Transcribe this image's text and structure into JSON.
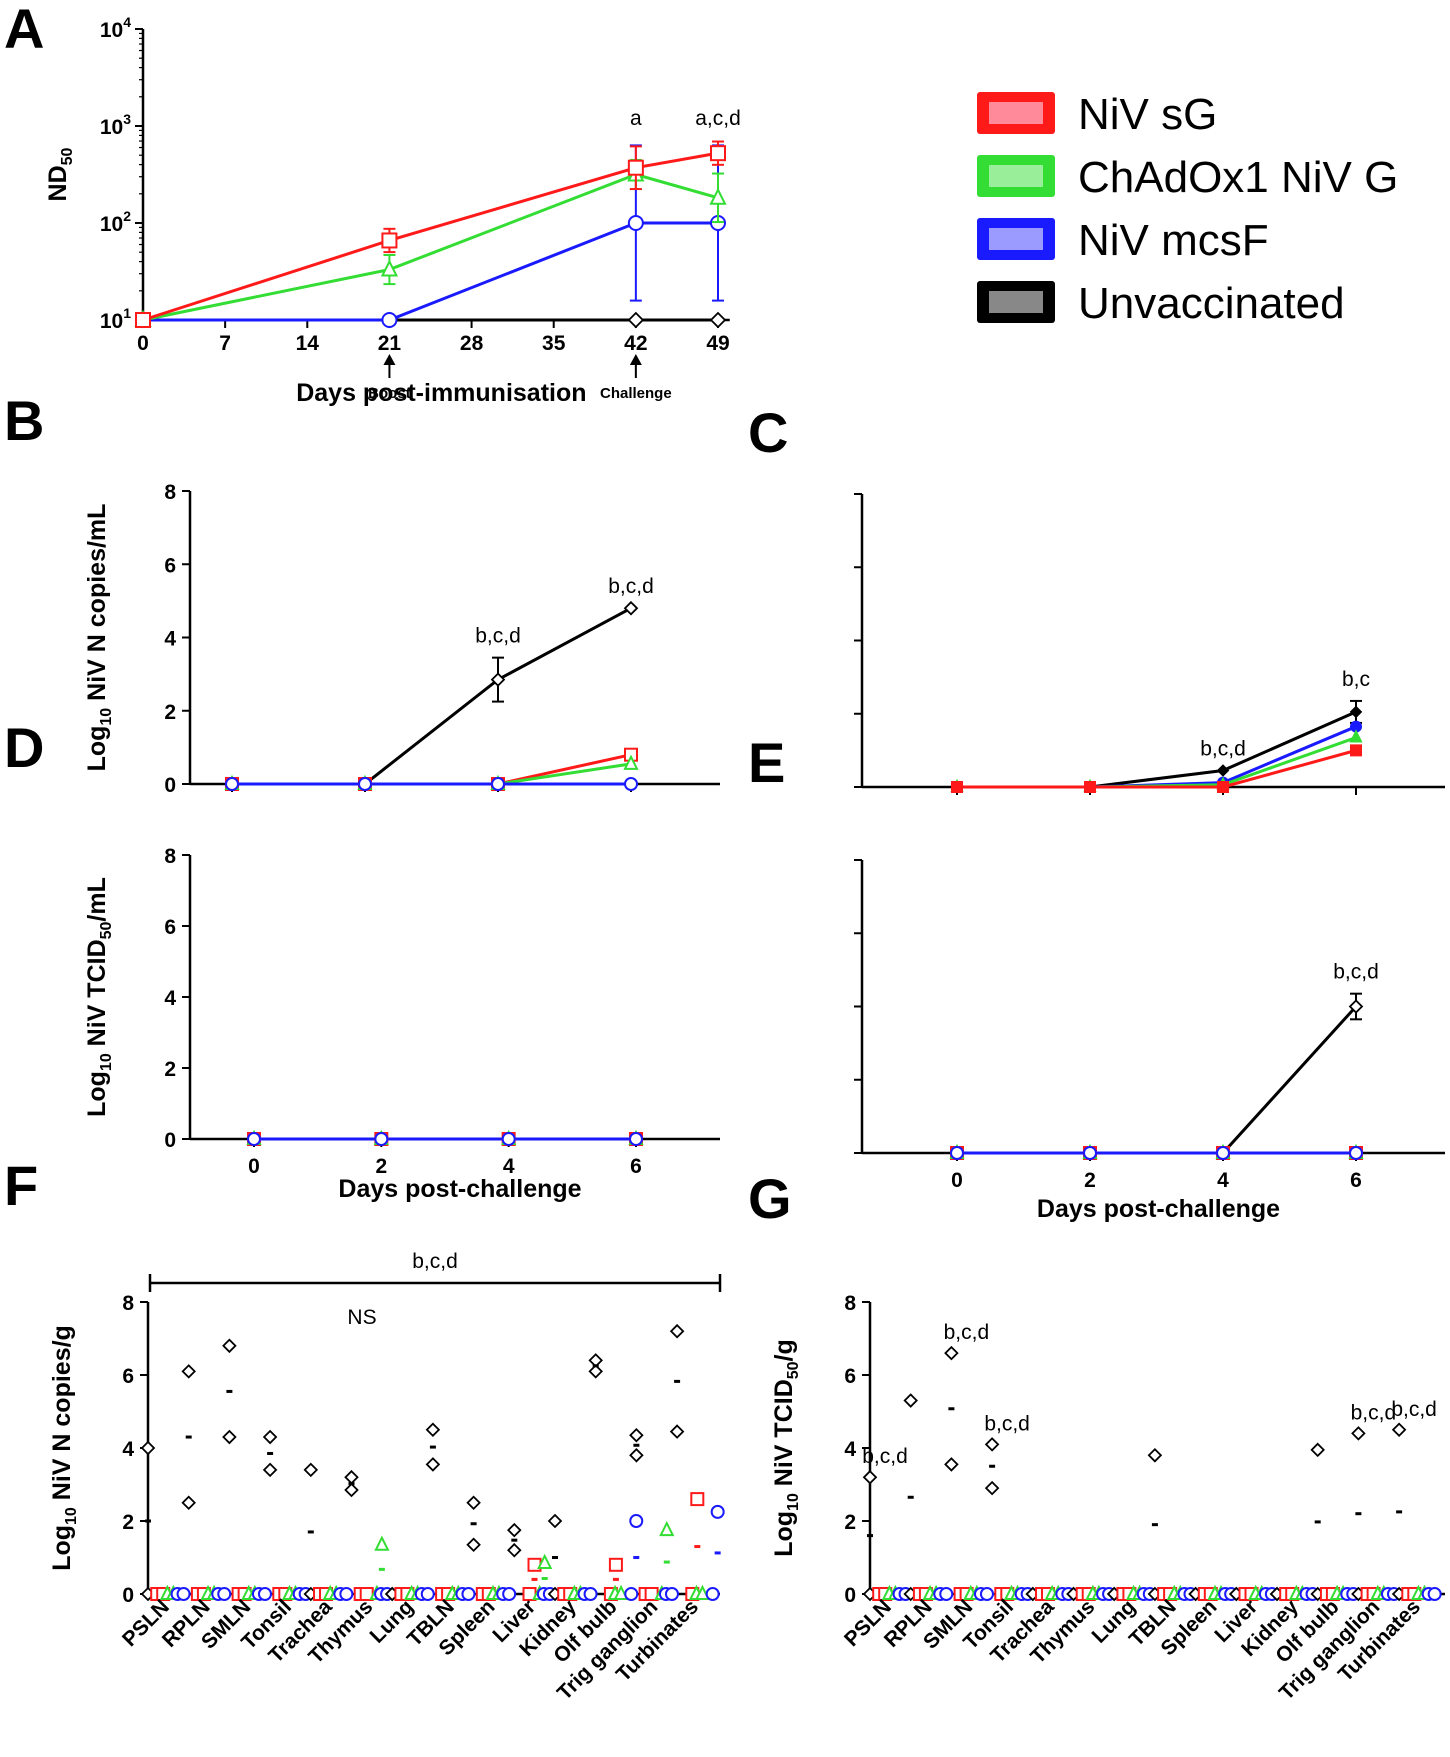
{
  "colors": {
    "sG": "#ff1a1a",
    "chad": "#33dd33",
    "mcsF": "#1a1aff",
    "unvac": "#000000"
  },
  "legend": [
    {
      "key": "sG",
      "label": "NiV sG",
      "fill": "#ff8a9a"
    },
    {
      "key": "chad",
      "label": "ChAdOx1 NiV G",
      "fill": "#99ee99"
    },
    {
      "key": "mcsF",
      "label": "NiV mcsF",
      "fill": "#9a9aff"
    },
    {
      "key": "unvac",
      "label": "Unvaccinated",
      "fill": "#888888"
    }
  ],
  "chart_data": [
    {
      "panel": "A",
      "type": "line",
      "ylabel": "ND50",
      "xlabel": "Days post-immunisation",
      "xlim": [
        0,
        50
      ],
      "xticks": [
        0,
        7,
        14,
        21,
        28,
        35,
        42,
        49
      ],
      "ylim_log10": [
        1,
        4
      ],
      "y_tick_labels": [
        "10^1",
        "10^2",
        "10^3",
        "10^4"
      ],
      "markers": [
        {
          "day": 21,
          "label": "Boost"
        },
        {
          "day": 42,
          "label": "Challenge"
        }
      ],
      "series": [
        {
          "group": "sG",
          "x": [
            0,
            21,
            42,
            49
          ],
          "log10_y": [
            1,
            1.82,
            2.57,
            2.72
          ],
          "err": [
            0,
            0.12,
            0.22,
            0.12
          ]
        },
        {
          "group": "chad",
          "x": [
            0,
            21,
            42,
            49
          ],
          "log10_y": [
            1,
            1.52,
            2.5,
            2.26
          ],
          "err": [
            0,
            0.15,
            0.15,
            0.25
          ]
        },
        {
          "group": "mcsF",
          "x": [
            0,
            21,
            42,
            49
          ],
          "log10_y": [
            1,
            1,
            2,
            2
          ],
          "err": [
            0,
            0,
            0.8,
            0.8
          ]
        },
        {
          "group": "unvac",
          "x": [
            0,
            21,
            42,
            49
          ],
          "log10_y": [
            1,
            1,
            1,
            1
          ],
          "err": [
            0,
            0,
            0,
            0
          ]
        }
      ],
      "annotations": [
        {
          "x": 42,
          "text": "a"
        },
        {
          "x": 49,
          "text": "a,c,d"
        }
      ]
    },
    {
      "panel": "B",
      "type": "line",
      "ylabel": "Log10 NiV N copies/mL",
      "xticks": [
        0,
        2,
        4,
        6
      ],
      "ylim": [
        0,
        8
      ],
      "series": [
        {
          "group": "unvac",
          "x": [
            0,
            2,
            4,
            6
          ],
          "y": [
            0,
            0,
            2.85,
            4.8
          ],
          "err": [
            0,
            0,
            0.6,
            0
          ]
        },
        {
          "group": "sG",
          "x": [
            0,
            2,
            4,
            6
          ],
          "y": [
            0,
            0,
            0,
            0.8
          ],
          "err": [
            0,
            0,
            0,
            0
          ]
        },
        {
          "group": "chad",
          "x": [
            0,
            2,
            4,
            6
          ],
          "y": [
            0,
            0,
            0,
            0.55
          ],
          "err": [
            0,
            0,
            0,
            0
          ]
        },
        {
          "group": "mcsF",
          "x": [
            0,
            2,
            4,
            6
          ],
          "y": [
            0,
            0,
            0,
            0
          ],
          "err": [
            0,
            0,
            0,
            0
          ]
        }
      ],
      "annotations": [
        {
          "x": 4,
          "text": "b,c,d"
        },
        {
          "x": 6,
          "text": "b,c,d"
        }
      ]
    },
    {
      "panel": "C",
      "type": "line",
      "xticks": [
        0,
        2,
        4,
        6
      ],
      "ylim": [
        0,
        8
      ],
      "series": [
        {
          "group": "unvac",
          "x": [
            0,
            2,
            4,
            6
          ],
          "y": [
            0,
            0,
            0.45,
            2.05
          ],
          "err": [
            0,
            0,
            0,
            0.3
          ]
        },
        {
          "group": "mcsF",
          "x": [
            0,
            2,
            4,
            6
          ],
          "y": [
            0,
            0,
            0.12,
            1.65
          ],
          "err": [
            0,
            0,
            0,
            0
          ]
        },
        {
          "group": "chad",
          "x": [
            0,
            2,
            4,
            6
          ],
          "y": [
            0,
            0,
            0.06,
            1.35
          ],
          "err": [
            0,
            0,
            0,
            0
          ]
        },
        {
          "group": "sG",
          "x": [
            0,
            2,
            4,
            6
          ],
          "y": [
            0,
            0,
            0,
            1.0
          ],
          "err": [
            0,
            0,
            0,
            0
          ]
        }
      ],
      "annotations": [
        {
          "x": 4,
          "text": "b,c,d"
        },
        {
          "x": 6,
          "text": "b,c"
        }
      ]
    },
    {
      "panel": "D",
      "type": "line",
      "ylabel": "Log10 NiV TCID50/mL",
      "xlabel": "Days post-challenge",
      "xticks": [
        0,
        2,
        4,
        6
      ],
      "ylim": [
        0,
        8
      ],
      "series": [
        {
          "group": "sG",
          "x": [
            0,
            2,
            4,
            6
          ],
          "y": [
            0,
            0,
            0,
            0
          ]
        },
        {
          "group": "chad",
          "x": [
            0,
            2,
            4,
            6
          ],
          "y": [
            0,
            0,
            0,
            0
          ]
        },
        {
          "group": "mcsF",
          "x": [
            0,
            2,
            4,
            6
          ],
          "y": [
            0,
            0,
            0,
            0
          ]
        },
        {
          "group": "unvac",
          "x": [
            0,
            2,
            4,
            6
          ],
          "y": [
            0,
            0,
            0,
            0
          ]
        }
      ]
    },
    {
      "panel": "E",
      "type": "line",
      "xlabel": "Days post-challenge",
      "xticks": [
        0,
        2,
        4,
        6
      ],
      "ylim": [
        0,
        8
      ],
      "series": [
        {
          "group": "unvac",
          "x": [
            0,
            2,
            4,
            6
          ],
          "y": [
            0,
            0,
            0,
            4.0
          ],
          "err": [
            0,
            0,
            0,
            0.35
          ]
        },
        {
          "group": "mcsF",
          "x": [
            0,
            2,
            4,
            6
          ],
          "y": [
            0,
            0,
            0,
            0
          ]
        },
        {
          "group": "sG",
          "x": [
            0,
            2,
            4,
            6
          ],
          "y": [
            0,
            0,
            0,
            0
          ]
        },
        {
          "group": "chad",
          "x": [
            0,
            2,
            4,
            6
          ],
          "y": [
            0,
            0,
            0,
            0
          ]
        }
      ],
      "annotations": [
        {
          "x": 6,
          "text": "b,c,d"
        }
      ]
    },
    {
      "panel": "F",
      "type": "scatter",
      "ylabel": "Log10 NiV N copies/g",
      "ylim": [
        0,
        8
      ],
      "categories": [
        "PSLN",
        "RPLN",
        "SMLN",
        "Tonsil",
        "Trachea",
        "Thymus",
        "Lung",
        "TBLN",
        "Spleen",
        "Liver",
        "Kidney",
        "Olf bulb",
        "Trig ganglion",
        "Turbinates"
      ],
      "bracket_label": "b,c,d",
      "ns_label": "NS",
      "points": {
        "unvac": [
          [
            4.0,
            0
          ],
          [
            6.1,
            2.5
          ],
          [
            6.8,
            4.3
          ],
          [
            4.3,
            3.4
          ],
          [
            3.4,
            0
          ],
          [
            3.2,
            2.85
          ],
          [
            0,
            0
          ],
          [
            4.5,
            3.55
          ],
          [
            2.5,
            1.35
          ],
          [
            1.75,
            1.2
          ],
          [
            2.0,
            0
          ],
          [
            6.4,
            6.1
          ],
          [
            4.35,
            3.8
          ],
          [
            7.2,
            4.45
          ]
        ],
        "sG": [
          [
            0,
            0
          ],
          [
            0,
            0
          ],
          [
            0,
            0
          ],
          [
            0,
            0
          ],
          [
            0,
            0
          ],
          [
            0,
            0
          ],
          [
            0,
            0
          ],
          [
            0,
            0
          ],
          [
            0,
            0
          ],
          [
            0.8,
            0
          ],
          [
            0,
            0
          ],
          [
            0.8,
            0
          ],
          [
            0,
            0
          ],
          [
            2.6,
            0
          ]
        ],
        "chad": [
          [
            0,
            0
          ],
          [
            0,
            0
          ],
          [
            0,
            0
          ],
          [
            0,
            0
          ],
          [
            0,
            0
          ],
          [
            1.35,
            0
          ],
          [
            0,
            0
          ],
          [
            0,
            0
          ],
          [
            0,
            0
          ],
          [
            0.85,
            0
          ],
          [
            0,
            0
          ],
          [
            0,
            0
          ],
          [
            1.75,
            0
          ],
          [
            0,
            0
          ]
        ],
        "mcsF": [
          [
            0,
            0
          ],
          [
            0,
            0
          ],
          [
            0,
            0
          ],
          [
            0,
            0
          ],
          [
            0,
            0
          ],
          [
            0,
            0
          ],
          [
            0,
            0
          ],
          [
            0,
            0
          ],
          [
            0,
            0
          ],
          [
            0,
            0
          ],
          [
            0,
            0
          ],
          [
            2.0,
            0
          ],
          [
            0,
            0
          ],
          [
            2.25,
            0
          ]
        ]
      }
    },
    {
      "panel": "G",
      "type": "scatter",
      "ylabel": "Log10 NiV TCID50/g",
      "ylim": [
        0,
        8
      ],
      "categories": [
        "PSLN",
        "RPLN",
        "SMLN",
        "Tonsil",
        "Trachea",
        "Thymus",
        "Lung",
        "TBLN",
        "Spleen",
        "Liver",
        "Kidney",
        "Olf bulb",
        "Trig ganglion",
        "Turbinates"
      ],
      "points": {
        "unvac": [
          [
            3.2,
            0
          ],
          [
            5.3,
            0
          ],
          [
            6.6,
            3.55
          ],
          [
            4.1,
            2.9
          ],
          [
            0,
            0
          ],
          [
            0,
            0
          ],
          [
            0,
            0
          ],
          [
            3.8,
            0
          ],
          [
            0,
            0
          ],
          [
            0,
            0
          ],
          [
            0,
            0
          ],
          [
            3.95,
            0
          ],
          [
            4.4,
            0
          ],
          [
            4.5,
            0
          ]
        ],
        "sG": [
          [
            0,
            0
          ],
          [
            0,
            0
          ],
          [
            0,
            0
          ],
          [
            0,
            0
          ],
          [
            0,
            0
          ],
          [
            0,
            0
          ],
          [
            0,
            0
          ],
          [
            0,
            0
          ],
          [
            0,
            0
          ],
          [
            0,
            0
          ],
          [
            0,
            0
          ],
          [
            0,
            0
          ],
          [
            0,
            0
          ],
          [
            0,
            0
          ]
        ],
        "chad": [
          [
            0,
            0
          ],
          [
            0,
            0
          ],
          [
            0,
            0
          ],
          [
            0,
            0
          ],
          [
            0,
            0
          ],
          [
            0,
            0
          ],
          [
            0,
            0
          ],
          [
            0,
            0
          ],
          [
            0,
            0
          ],
          [
            0,
            0
          ],
          [
            0,
            0
          ],
          [
            0,
            0
          ],
          [
            0,
            0
          ],
          [
            0,
            0
          ]
        ],
        "mcsF": [
          [
            0,
            0
          ],
          [
            0,
            0
          ],
          [
            0,
            0
          ],
          [
            0,
            0
          ],
          [
            0,
            0
          ],
          [
            0,
            0
          ],
          [
            0,
            0
          ],
          [
            0,
            0
          ],
          [
            0,
            0
          ],
          [
            0,
            0
          ],
          [
            0,
            0
          ],
          [
            0,
            0
          ],
          [
            0,
            0
          ],
          [
            0,
            0
          ]
        ]
      },
      "annotations": [
        {
          "cat": "PSLN",
          "text": "b,c,d"
        },
        {
          "cat": "SMLN",
          "text": "b,c,d"
        },
        {
          "cat": "Tonsil",
          "text": "b,c,d"
        },
        {
          "cat": "Trig ganglion",
          "text": "b,c,d"
        },
        {
          "cat": "Turbinates",
          "text": "b,c,d"
        }
      ]
    }
  ]
}
